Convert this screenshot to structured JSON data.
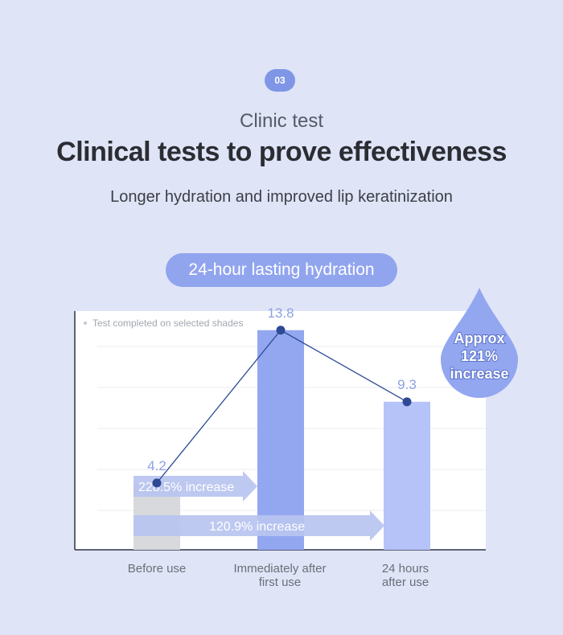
{
  "header": {
    "step_badge": "03",
    "kicker": "Clinic test",
    "headline": "Clinical tests to prove effectiveness",
    "subline": "Longer hydration and improved lip keratinization",
    "pill": "24-hour lasting hydration"
  },
  "colors": {
    "accent": "#91a4ee",
    "bar_before": "#d7d9dc",
    "bar_immediate": "#93a7f1",
    "bar_24h": "#b6c3f8",
    "line": "#2e4a95",
    "label": "#8ea2e3"
  },
  "chart_data": {
    "type": "bar",
    "note": "Test completed on selected shades",
    "categories": [
      [
        "Before use"
      ],
      [
        "Immediately after",
        "first use"
      ],
      [
        "24 hours",
        "after use"
      ]
    ],
    "values": [
      4.2,
      13.8,
      9.3
    ],
    "value_labels": [
      "4.2",
      "13.8",
      "9.3"
    ],
    "ylim": [
      0,
      15
    ],
    "grid": true,
    "overlay_line": true,
    "comparisons": [
      {
        "label": "228.5% increase",
        "from": 0,
        "to": 1
      },
      {
        "label": "120.9% increase",
        "from": 0,
        "to": 2
      }
    ],
    "callout": [
      "Approx",
      "121%",
      "increase"
    ]
  }
}
